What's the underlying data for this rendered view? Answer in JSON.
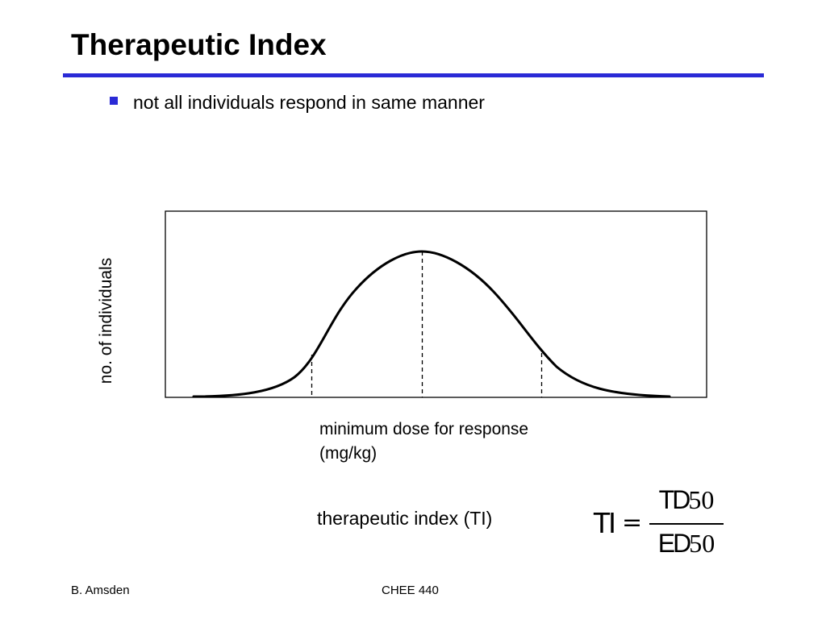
{
  "slide": {
    "title": "Therapeutic Index",
    "bullet": "not all individuals respond in same manner"
  },
  "diagram": {
    "ylabel": "no. of individuals",
    "xlabel_line1": "minimum dose for response",
    "xlabel_line2": "(mg/kg)",
    "curve": "bell-shaped distribution",
    "dashed_markers": 3
  },
  "definition": {
    "label": "therapeutic index (TI)",
    "lhs": "TI",
    "equals": "=",
    "numerator_letters": "TD",
    "numerator_digits": "50",
    "denominator_letters": "ED",
    "denominator_digits": "50"
  },
  "footer": {
    "author": "B. Amsden",
    "course": "CHEE 440"
  },
  "colors": {
    "rule": "#2a2ad6",
    "bullet": "#2a2ad6",
    "text": "#000000"
  }
}
